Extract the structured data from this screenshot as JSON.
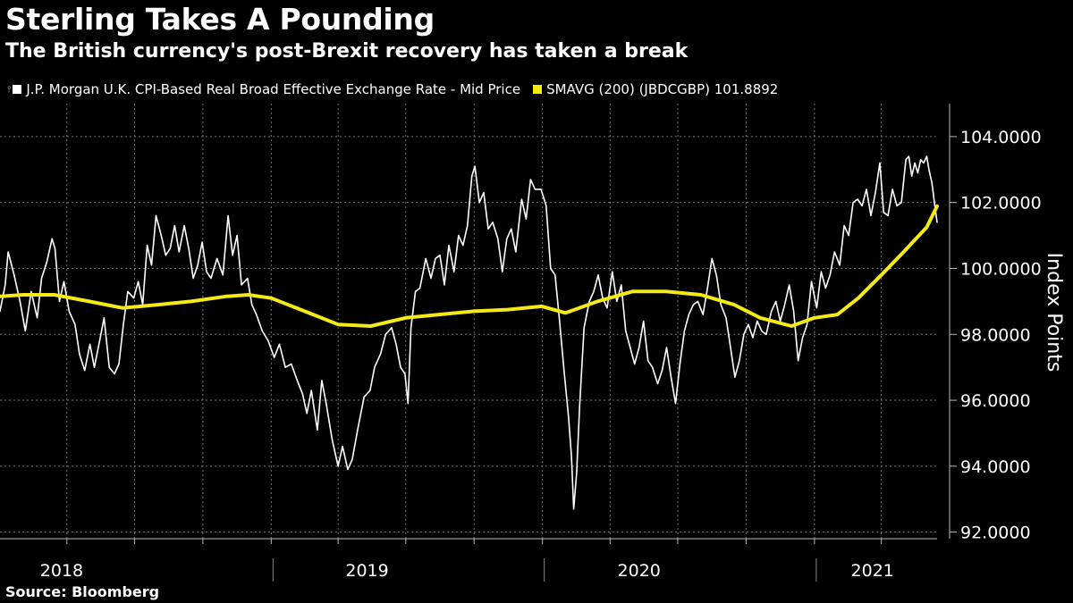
{
  "title": "Sterling Takes A Pounding",
  "subtitle": "The British currency's post-Brexit recovery has taken a break",
  "source": "Source: Bloomberg",
  "legend": {
    "series1": "J.P. Morgan U.K. CPI-Based Real Broad Effective Exchange Rate - Mid Price",
    "series2": "SMAVG (200) (JBDCGBP) 101.8892"
  },
  "colors": {
    "background": "#000000",
    "series1": "#ffffff",
    "series2": "#f5ea14",
    "grid": "#777777"
  },
  "chart_data": {
    "type": "line",
    "ylabel": "Index Points",
    "ylim": [
      91.8,
      105
    ],
    "yticks": [
      "104.0000",
      "102.0000",
      "100.0000",
      "98.0000",
      "96.0000",
      "94.0000",
      "92.0000"
    ],
    "ytick_values": [
      104,
      102,
      100,
      98,
      96,
      94,
      92
    ],
    "xlim": [
      "2018-01-01",
      "2021-06-15"
    ],
    "year_labels": [
      {
        "label": "2018",
        "date": "2018-03-25"
      },
      {
        "label": "2019",
        "date": "2019-05-10"
      },
      {
        "label": "2020",
        "date": "2020-05-10"
      },
      {
        "label": "2021",
        "date": "2021-03-20"
      }
    ],
    "grid": true,
    "series": [
      {
        "name": "J.P. Morgan U.K. CPI-Based Real Broad Effective Exchange Rate - Mid Price",
        "color": "#ffffff",
        "points": [
          [
            "2018-01-01",
            98.7
          ],
          [
            "2018-01-08",
            99.5
          ],
          [
            "2018-01-12",
            100.5
          ],
          [
            "2018-01-20",
            99.8
          ],
          [
            "2018-01-28",
            99.0
          ],
          [
            "2018-02-04",
            98.1
          ],
          [
            "2018-02-12",
            99.3
          ],
          [
            "2018-02-20",
            98.5
          ],
          [
            "2018-02-26",
            99.7
          ],
          [
            "2018-03-05",
            100.2
          ],
          [
            "2018-03-12",
            100.9
          ],
          [
            "2018-03-16",
            100.6
          ],
          [
            "2018-03-22",
            99.0
          ],
          [
            "2018-03-28",
            99.6
          ],
          [
            "2018-04-04",
            98.7
          ],
          [
            "2018-04-12",
            98.3
          ],
          [
            "2018-04-18",
            97.4
          ],
          [
            "2018-04-25",
            96.9
          ],
          [
            "2018-05-02",
            97.7
          ],
          [
            "2018-05-08",
            97.0
          ],
          [
            "2018-05-15",
            97.8
          ],
          [
            "2018-05-21",
            98.5
          ],
          [
            "2018-05-28",
            97.0
          ],
          [
            "2018-06-04",
            96.8
          ],
          [
            "2018-06-10",
            97.1
          ],
          [
            "2018-06-16",
            98.3
          ],
          [
            "2018-06-22",
            99.3
          ],
          [
            "2018-06-30",
            99.1
          ],
          [
            "2018-07-06",
            99.6
          ],
          [
            "2018-07-12",
            98.9
          ],
          [
            "2018-07-18",
            100.7
          ],
          [
            "2018-07-24",
            100.1
          ],
          [
            "2018-07-30",
            101.6
          ],
          [
            "2018-08-06",
            101.0
          ],
          [
            "2018-08-12",
            100.4
          ],
          [
            "2018-08-18",
            100.6
          ],
          [
            "2018-08-24",
            101.3
          ],
          [
            "2018-08-30",
            100.5
          ],
          [
            "2018-09-06",
            101.3
          ],
          [
            "2018-09-12",
            100.6
          ],
          [
            "2018-09-18",
            99.7
          ],
          [
            "2018-09-24",
            100.1
          ],
          [
            "2018-09-30",
            100.8
          ],
          [
            "2018-10-06",
            99.9
          ],
          [
            "2018-10-12",
            99.7
          ],
          [
            "2018-10-20",
            100.3
          ],
          [
            "2018-10-28",
            99.8
          ],
          [
            "2018-11-04",
            101.6
          ],
          [
            "2018-11-10",
            100.4
          ],
          [
            "2018-11-16",
            101.0
          ],
          [
            "2018-11-22",
            99.5
          ],
          [
            "2018-11-30",
            99.7
          ],
          [
            "2018-12-06",
            98.9
          ],
          [
            "2018-12-12",
            98.6
          ],
          [
            "2018-12-20",
            98.1
          ],
          [
            "2018-12-28",
            97.8
          ],
          [
            "2019-01-05",
            97.3
          ],
          [
            "2019-01-12",
            97.7
          ],
          [
            "2019-01-20",
            97.0
          ],
          [
            "2019-01-28",
            97.1
          ],
          [
            "2019-02-05",
            96.6
          ],
          [
            "2019-02-12",
            96.2
          ],
          [
            "2019-02-18",
            95.6
          ],
          [
            "2019-02-24",
            96.3
          ],
          [
            "2019-03-04",
            95.1
          ],
          [
            "2019-03-10",
            96.6
          ],
          [
            "2019-03-16",
            95.9
          ],
          [
            "2019-03-24",
            94.8
          ],
          [
            "2019-04-01",
            94.0
          ],
          [
            "2019-04-07",
            94.6
          ],
          [
            "2019-04-14",
            93.9
          ],
          [
            "2019-04-20",
            94.2
          ],
          [
            "2019-04-28",
            95.2
          ],
          [
            "2019-05-06",
            96.1
          ],
          [
            "2019-05-14",
            96.3
          ],
          [
            "2019-05-20",
            97.0
          ],
          [
            "2019-05-28",
            97.4
          ],
          [
            "2019-06-04",
            98.0
          ],
          [
            "2019-06-12",
            98.2
          ],
          [
            "2019-06-18",
            97.7
          ],
          [
            "2019-06-24",
            97.0
          ],
          [
            "2019-06-30",
            96.8
          ],
          [
            "2019-07-04",
            95.9
          ],
          [
            "2019-07-08",
            98.2
          ],
          [
            "2019-07-14",
            99.3
          ],
          [
            "2019-07-20",
            99.4
          ],
          [
            "2019-07-28",
            100.3
          ],
          [
            "2019-08-04",
            99.7
          ],
          [
            "2019-08-10",
            100.3
          ],
          [
            "2019-08-16",
            100.4
          ],
          [
            "2019-08-22",
            99.5
          ],
          [
            "2019-08-28",
            100.7
          ],
          [
            "2019-09-04",
            99.9
          ],
          [
            "2019-09-10",
            101.0
          ],
          [
            "2019-09-16",
            100.7
          ],
          [
            "2019-09-22",
            101.3
          ],
          [
            "2019-09-28",
            102.8
          ],
          [
            "2019-10-02",
            103.1
          ],
          [
            "2019-10-08",
            102.0
          ],
          [
            "2019-10-14",
            102.3
          ],
          [
            "2019-10-20",
            101.2
          ],
          [
            "2019-10-26",
            101.4
          ],
          [
            "2019-11-02",
            100.9
          ],
          [
            "2019-11-08",
            99.9
          ],
          [
            "2019-11-14",
            100.9
          ],
          [
            "2019-11-20",
            101.2
          ],
          [
            "2019-11-26",
            100.5
          ],
          [
            "2019-12-04",
            102.1
          ],
          [
            "2019-12-10",
            101.5
          ],
          [
            "2019-12-16",
            102.7
          ],
          [
            "2019-12-22",
            102.4
          ],
          [
            "2019-12-30",
            102.4
          ],
          [
            "2020-01-06",
            101.9
          ],
          [
            "2020-01-12",
            100.0
          ],
          [
            "2020-01-18",
            99.8
          ],
          [
            "2020-01-24",
            98.4
          ],
          [
            "2020-01-30",
            96.9
          ],
          [
            "2020-02-05",
            95.5
          ],
          [
            "2020-02-09",
            94.3
          ],
          [
            "2020-02-12",
            92.7
          ],
          [
            "2020-02-16",
            93.8
          ],
          [
            "2020-02-20",
            95.8
          ],
          [
            "2020-02-26",
            98.2
          ],
          [
            "2020-03-04",
            99.0
          ],
          [
            "2020-03-10",
            99.3
          ],
          [
            "2020-03-16",
            99.8
          ],
          [
            "2020-03-22",
            99.1
          ],
          [
            "2020-03-28",
            98.8
          ],
          [
            "2020-04-04",
            99.9
          ],
          [
            "2020-04-10",
            99.0
          ],
          [
            "2020-04-16",
            99.5
          ],
          [
            "2020-04-22",
            98.1
          ],
          [
            "2020-04-28",
            97.6
          ],
          [
            "2020-05-04",
            97.1
          ],
          [
            "2020-05-10",
            97.6
          ],
          [
            "2020-05-16",
            98.4
          ],
          [
            "2020-05-22",
            97.2
          ],
          [
            "2020-05-28",
            97.0
          ],
          [
            "2020-06-04",
            96.5
          ],
          [
            "2020-06-10",
            96.9
          ],
          [
            "2020-06-16",
            97.6
          ],
          [
            "2020-06-22",
            96.7
          ],
          [
            "2020-06-28",
            95.9
          ],
          [
            "2020-07-04",
            97.1
          ],
          [
            "2020-07-10",
            98.1
          ],
          [
            "2020-07-16",
            98.6
          ],
          [
            "2020-07-22",
            98.9
          ],
          [
            "2020-07-28",
            99.0
          ],
          [
            "2020-08-04",
            98.6
          ],
          [
            "2020-08-10",
            99.4
          ],
          [
            "2020-08-16",
            100.3
          ],
          [
            "2020-08-22",
            99.8
          ],
          [
            "2020-08-28",
            98.9
          ],
          [
            "2020-09-04",
            98.5
          ],
          [
            "2020-09-10",
            97.6
          ],
          [
            "2020-09-16",
            96.7
          ],
          [
            "2020-09-22",
            97.2
          ],
          [
            "2020-09-28",
            98.0
          ],
          [
            "2020-10-04",
            98.3
          ],
          [
            "2020-10-10",
            97.9
          ],
          [
            "2020-10-16",
            98.4
          ],
          [
            "2020-10-22",
            98.1
          ],
          [
            "2020-10-28",
            98.0
          ],
          [
            "2020-11-04",
            98.7
          ],
          [
            "2020-11-10",
            99.0
          ],
          [
            "2020-11-16",
            98.4
          ],
          [
            "2020-11-22",
            98.9
          ],
          [
            "2020-11-28",
            99.5
          ],
          [
            "2020-12-04",
            98.7
          ],
          [
            "2020-12-10",
            97.2
          ],
          [
            "2020-12-16",
            97.9
          ],
          [
            "2020-12-22",
            98.3
          ],
          [
            "2020-12-28",
            99.6
          ],
          [
            "2021-01-04",
            98.8
          ],
          [
            "2021-01-10",
            99.9
          ],
          [
            "2021-01-16",
            99.4
          ],
          [
            "2021-01-22",
            99.8
          ],
          [
            "2021-01-28",
            100.5
          ],
          [
            "2021-02-04",
            100.1
          ],
          [
            "2021-02-10",
            101.3
          ],
          [
            "2021-02-16",
            101.0
          ],
          [
            "2021-02-22",
            102.0
          ],
          [
            "2021-02-28",
            102.1
          ],
          [
            "2021-03-06",
            101.9
          ],
          [
            "2021-03-12",
            102.4
          ],
          [
            "2021-03-18",
            101.6
          ],
          [
            "2021-03-24",
            102.3
          ],
          [
            "2021-03-30",
            103.2
          ],
          [
            "2021-04-04",
            101.7
          ],
          [
            "2021-04-10",
            101.6
          ],
          [
            "2021-04-16",
            102.4
          ],
          [
            "2021-04-22",
            101.9
          ],
          [
            "2021-04-28",
            102.0
          ],
          [
            "2021-05-04",
            103.3
          ],
          [
            "2021-05-08",
            103.4
          ],
          [
            "2021-05-12",
            102.8
          ],
          [
            "2021-05-16",
            103.2
          ],
          [
            "2021-05-20",
            102.9
          ],
          [
            "2021-05-24",
            103.3
          ],
          [
            "2021-05-28",
            103.2
          ],
          [
            "2021-06-01",
            103.4
          ],
          [
            "2021-06-04",
            103.0
          ],
          [
            "2021-06-08",
            102.6
          ],
          [
            "2021-06-12",
            101.9
          ],
          [
            "2021-06-15",
            101.4
          ]
        ]
      },
      {
        "name": "SMAVG (200) (JBDCGBP) 101.8892",
        "color": "#f5ea14",
        "points": [
          [
            "2018-01-01",
            99.15
          ],
          [
            "2018-02-01",
            99.2
          ],
          [
            "2018-03-15",
            99.2
          ],
          [
            "2018-05-01",
            99.0
          ],
          [
            "2018-06-15",
            98.8
          ],
          [
            "2018-08-01",
            98.9
          ],
          [
            "2018-09-15",
            99.0
          ],
          [
            "2018-11-01",
            99.15
          ],
          [
            "2018-12-01",
            99.2
          ],
          [
            "2019-01-01",
            99.1
          ],
          [
            "2019-02-15",
            98.7
          ],
          [
            "2019-04-01",
            98.3
          ],
          [
            "2019-05-15",
            98.25
          ],
          [
            "2019-07-01",
            98.5
          ],
          [
            "2019-08-15",
            98.6
          ],
          [
            "2019-10-01",
            98.7
          ],
          [
            "2019-11-15",
            98.75
          ],
          [
            "2019-12-31",
            98.85
          ],
          [
            "2020-02-01",
            98.65
          ],
          [
            "2020-03-15",
            99.0
          ],
          [
            "2020-05-01",
            99.3
          ],
          [
            "2020-06-15",
            99.3
          ],
          [
            "2020-08-01",
            99.2
          ],
          [
            "2020-09-15",
            98.9
          ],
          [
            "2020-10-20",
            98.5
          ],
          [
            "2020-12-01",
            98.25
          ],
          [
            "2021-01-01",
            98.5
          ],
          [
            "2021-02-01",
            98.6
          ],
          [
            "2021-03-01",
            99.1
          ],
          [
            "2021-04-01",
            99.8
          ],
          [
            "2021-05-01",
            100.5
          ],
          [
            "2021-06-01",
            101.25
          ],
          [
            "2021-06-15",
            101.89
          ]
        ]
      }
    ]
  }
}
